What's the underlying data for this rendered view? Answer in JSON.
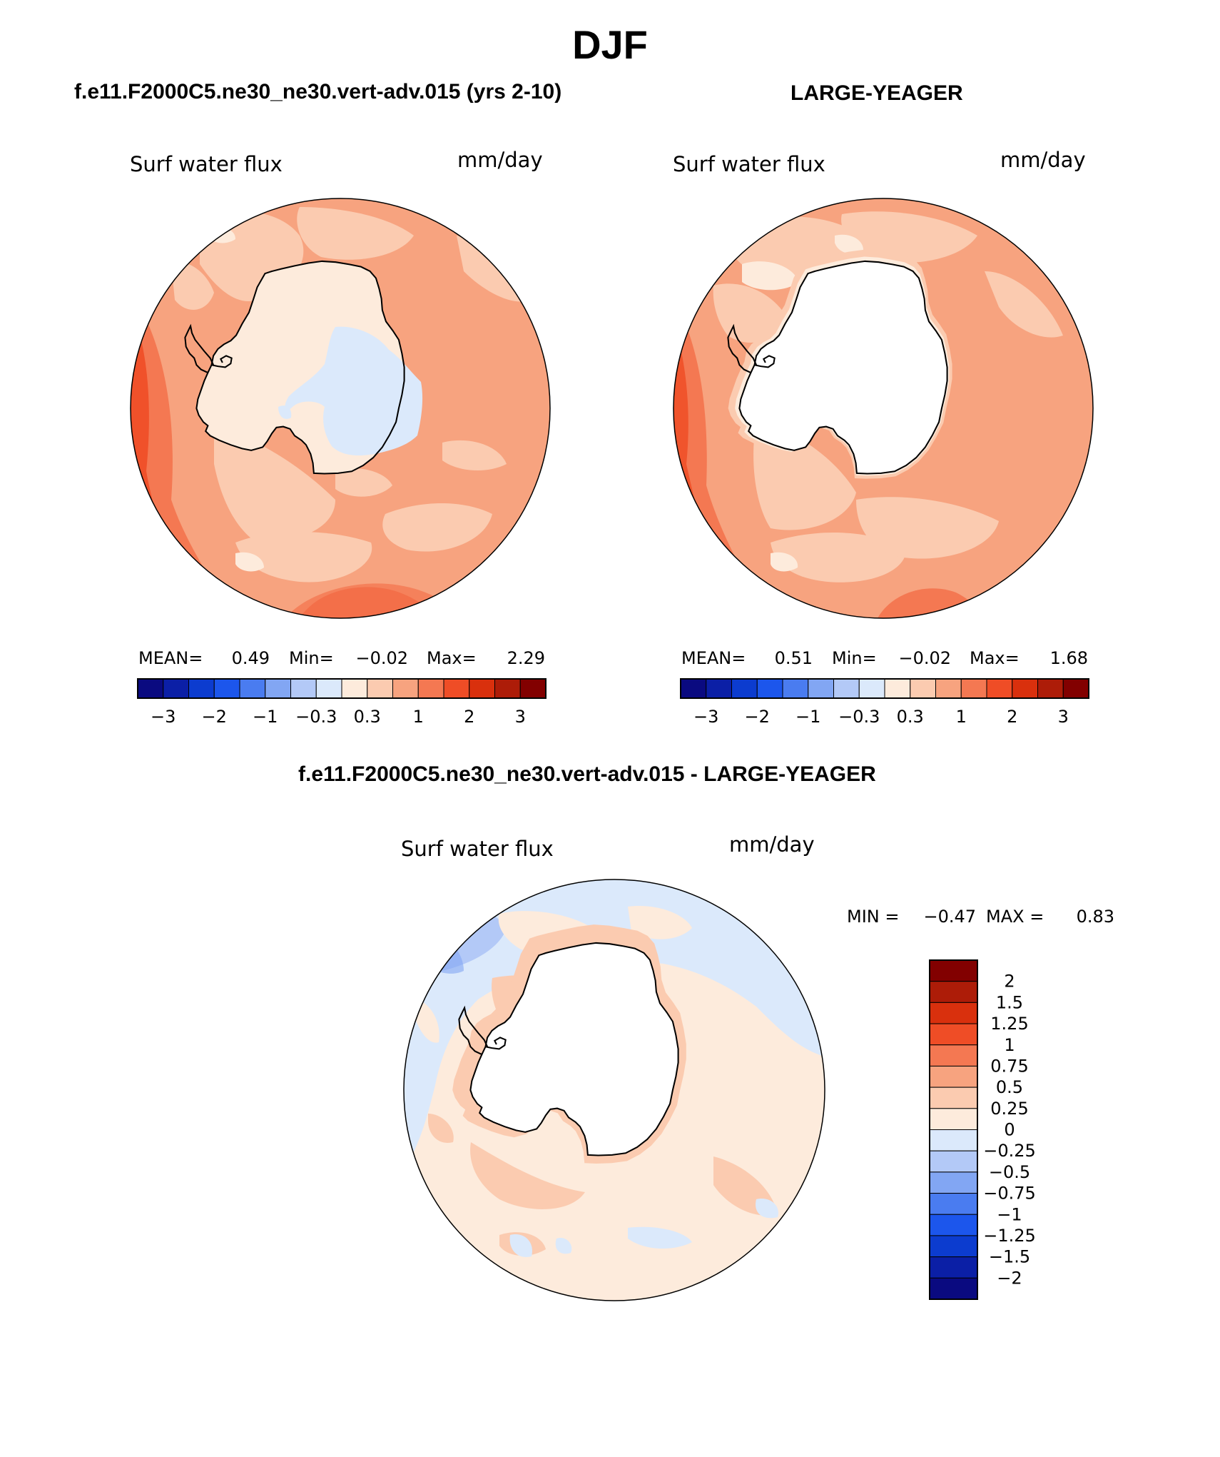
{
  "title": "DJF",
  "panels": [
    {
      "title": "f.e11.F2000C5.ne30_ne30.vert-adv.015 (yrs 2-10)",
      "variable": "Surf water flux",
      "units": "mm/day",
      "stats": {
        "mean_label": "MEAN=",
        "mean": "0.49",
        "min_label": "Min=",
        "min": "−0.02",
        "max_label": "Max=",
        "max": "2.29"
      }
    },
    {
      "title": "LARGE-YEAGER",
      "variable": "Surf water flux",
      "units": "mm/day",
      "stats": {
        "mean_label": "MEAN=",
        "mean": "0.51",
        "min_label": "Min=",
        "min": "−0.02",
        "max_label": "Max=",
        "max": "1.68"
      }
    },
    {
      "title": "f.e11.F2000C5.ne30_ne30.vert-adv.015 - LARGE-YEAGER",
      "variable": "Surf water flux",
      "units": "mm/day",
      "stats": {
        "min_label": "MIN =",
        "min": "−0.47",
        "max_label": "MAX =",
        "max": "0.83"
      }
    }
  ],
  "colorbar_top": {
    "colors": [
      "#0a0a80",
      "#0b1fa6",
      "#0c3ccf",
      "#1c56ec",
      "#4a7cf0",
      "#82a6f3",
      "#b3c9f7",
      "#dbe9fb",
      "#fdebdc",
      "#fbcbb0",
      "#f7a37f",
      "#f47852",
      "#ef4d26",
      "#d9300d",
      "#ad1c08",
      "#820000"
    ],
    "tick_labels": [
      "−3",
      "−2",
      "−1",
      "−0.3",
      "0.3",
      "1",
      "2",
      "3"
    ]
  },
  "colorbar_diff": {
    "colors": [
      "#820000",
      "#ad1c08",
      "#d9300d",
      "#ef4d26",
      "#f47852",
      "#f7a37f",
      "#fbcbb0",
      "#fdebdc",
      "#dbe9fb",
      "#b3c9f7",
      "#82a6f3",
      "#4a7cf0",
      "#1c56ec",
      "#0c3ccf",
      "#0b1fa6",
      "#0a0a80"
    ],
    "tick_labels": [
      "2",
      "1.5",
      "1.25",
      "1",
      "0.75",
      "0.5",
      "0.25",
      "0",
      "−0.25",
      "−0.5",
      "−0.75",
      "−1",
      "−1.25",
      "−1.5",
      "−2"
    ]
  }
}
